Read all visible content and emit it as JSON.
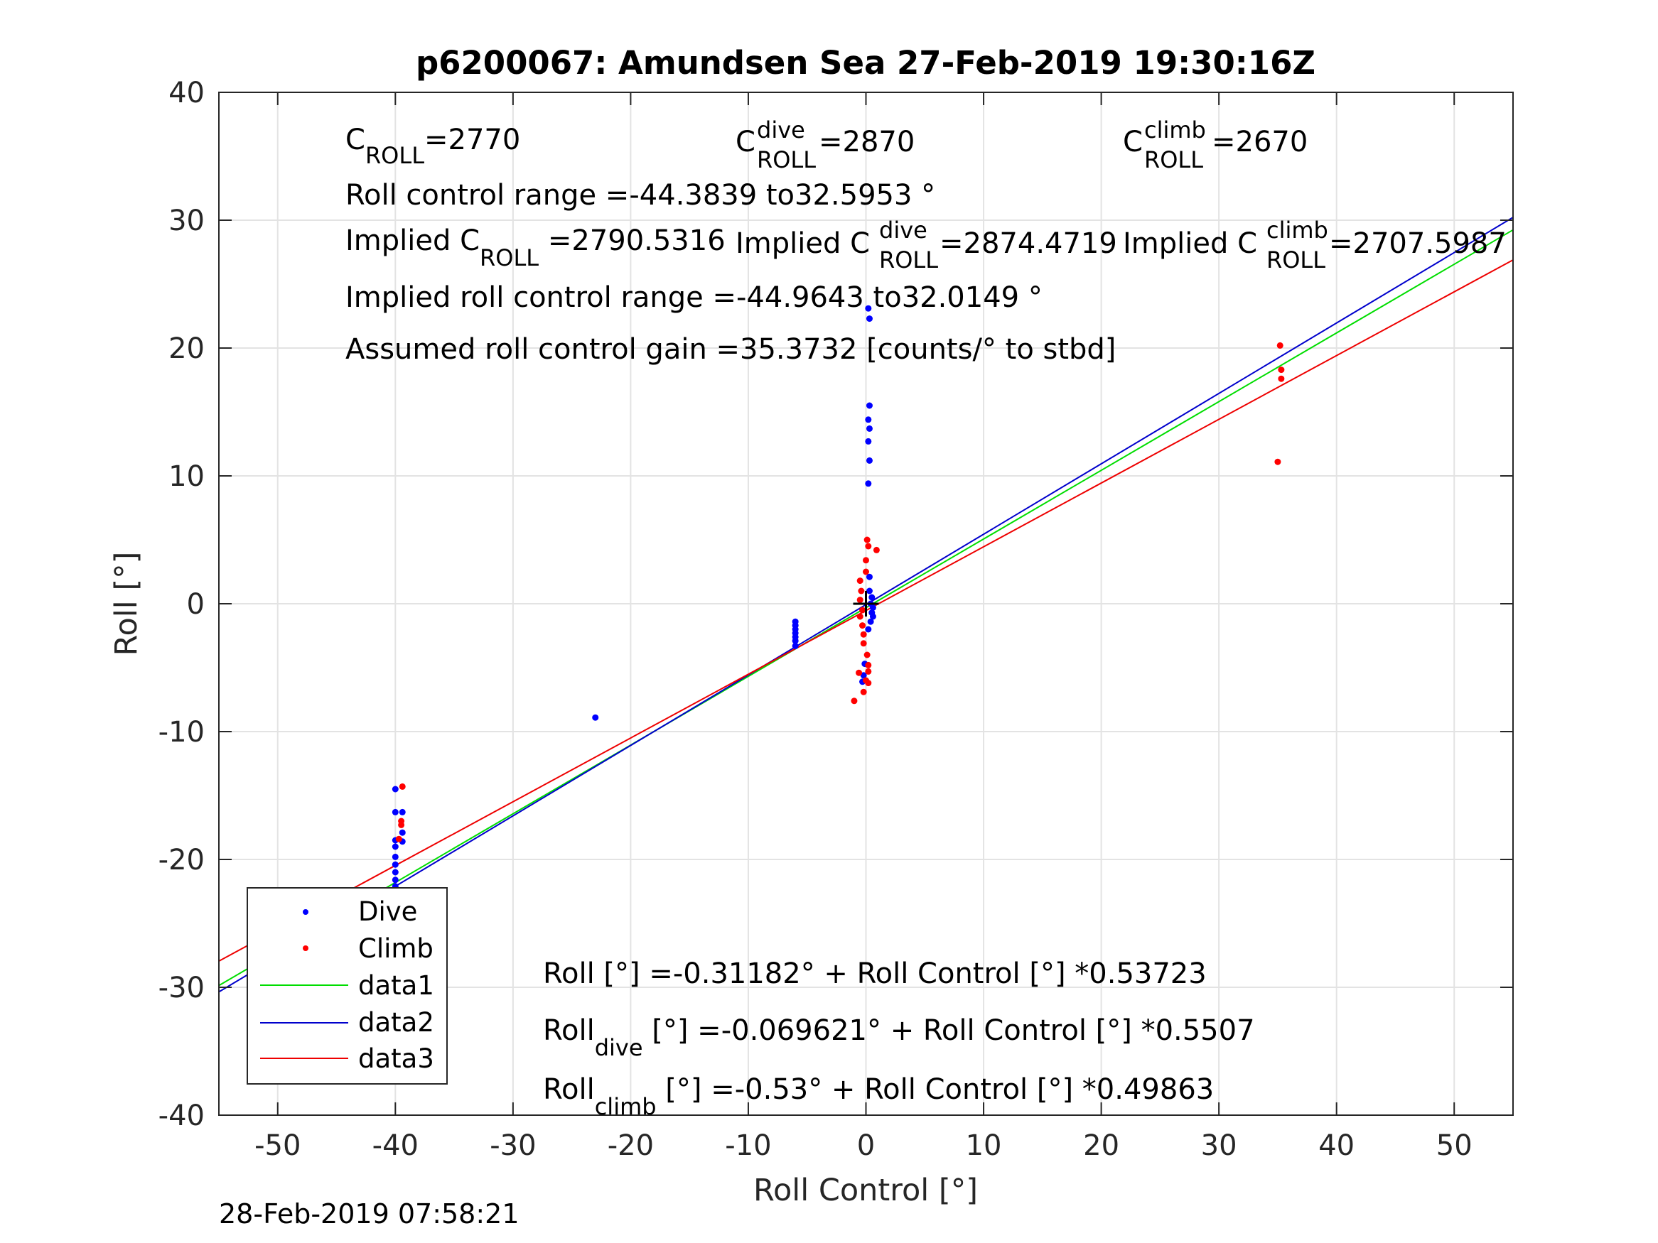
{
  "chart_data": {
    "type": "scatter",
    "title": "p6200067: Amundsen Sea 27-Feb-2019 19:30:16Z",
    "xlabel": "Roll Control [°]",
    "ylabel": "Roll [°]",
    "xlim": [
      -55,
      55
    ],
    "ylim": [
      -40,
      40
    ],
    "xticks": [
      "-50",
      "-40",
      "-30",
      "-20",
      "-10",
      "0",
      "10",
      "20",
      "30",
      "40",
      "50"
    ],
    "yticks": [
      "-40",
      "-30",
      "-20",
      "-10",
      "0",
      "10",
      "20",
      "30",
      "40"
    ],
    "xtick_values": [
      -50,
      -40,
      -30,
      -20,
      -10,
      0,
      10,
      20,
      30,
      40,
      50
    ],
    "ytick_values": [
      -40,
      -30,
      -20,
      -10,
      0,
      10,
      20,
      30,
      40
    ],
    "grid": true,
    "legend_position": "bottom-left",
    "timestamp": "28-Feb-2019 07:58:21",
    "colors": {
      "dive": "#0000ff",
      "climb": "#ff0000",
      "data1": "#00dd00",
      "data2": "#0000cc",
      "data3": "#ee0000"
    },
    "series": [
      {
        "name": "Dive",
        "kind": "points",
        "points": [
          [
            -47.7,
            -24.2
          ],
          [
            -40.0,
            -14.5
          ],
          [
            -40.0,
            -16.3
          ],
          [
            -40.0,
            -18.5
          ],
          [
            -40.0,
            -19.0
          ],
          [
            -40.0,
            -19.8
          ],
          [
            -40.0,
            -20.4
          ],
          [
            -40.0,
            -21.0
          ],
          [
            -40.0,
            -21.6
          ],
          [
            -40.0,
            -22.1
          ],
          [
            -40.0,
            -22.6
          ],
          [
            -40.0,
            -23.2
          ],
          [
            -40.0,
            -23.8
          ],
          [
            -40.0,
            -24.3
          ],
          [
            -40.0,
            -24.8
          ],
          [
            -40.0,
            -25.3
          ],
          [
            -40.0,
            -25.7
          ],
          [
            -39.4,
            -16.3
          ],
          [
            -39.4,
            -17.9
          ],
          [
            -39.4,
            -18.6
          ],
          [
            -23.0,
            -8.9
          ],
          [
            -6.0,
            -1.4
          ],
          [
            -6.0,
            -1.7
          ],
          [
            -6.0,
            -2.0
          ],
          [
            -6.0,
            -2.3
          ],
          [
            -6.0,
            -2.6
          ],
          [
            -6.0,
            -2.9
          ],
          [
            -6.0,
            -3.3
          ],
          [
            0.2,
            23.1
          ],
          [
            0.3,
            22.3
          ],
          [
            0.3,
            15.5
          ],
          [
            0.2,
            14.4
          ],
          [
            0.3,
            13.7
          ],
          [
            0.2,
            12.7
          ],
          [
            0.3,
            11.2
          ],
          [
            0.2,
            9.4
          ],
          [
            0.3,
            2.1
          ],
          [
            0.3,
            1.0
          ],
          [
            0.5,
            0.5
          ],
          [
            0.4,
            0.0
          ],
          [
            0.6,
            -0.3
          ],
          [
            0.5,
            -0.7
          ],
          [
            0.6,
            -1.0
          ],
          [
            0.4,
            -1.4
          ],
          [
            0.2,
            -2.0
          ],
          [
            -0.1,
            -4.7
          ],
          [
            -0.2,
            -5.6
          ],
          [
            -0.3,
            -6.1
          ]
        ]
      },
      {
        "name": "Climb",
        "kind": "points",
        "points": [
          [
            -47.7,
            -27.0
          ],
          [
            -39.4,
            -14.3
          ],
          [
            -39.5,
            -17.0
          ],
          [
            -39.5,
            -17.3
          ],
          [
            -39.7,
            -18.4
          ],
          [
            -40.0,
            -22.5
          ],
          [
            -40.0,
            -23.0
          ],
          [
            -40.0,
            -23.5
          ],
          [
            -40.0,
            -24.1
          ],
          [
            -39.6,
            -23.3
          ],
          [
            0.1,
            5.0
          ],
          [
            0.2,
            4.5
          ],
          [
            0.0,
            3.4
          ],
          [
            0.0,
            2.5
          ],
          [
            0.9,
            4.2
          ],
          [
            -0.5,
            1.8
          ],
          [
            -0.4,
            1.0
          ],
          [
            -0.5,
            0.3
          ],
          [
            -0.3,
            -0.5
          ],
          [
            -0.5,
            -1.0
          ],
          [
            -0.3,
            -1.7
          ],
          [
            -0.2,
            -2.4
          ],
          [
            -0.2,
            -3.1
          ],
          [
            0.1,
            -4.0
          ],
          [
            0.2,
            -4.8
          ],
          [
            0.2,
            -5.3
          ],
          [
            -0.6,
            -5.4
          ],
          [
            0.0,
            -6.0
          ],
          [
            0.2,
            -6.2
          ],
          [
            -0.2,
            -6.9
          ],
          [
            -1.0,
            -7.6
          ],
          [
            35.0,
            11.1
          ],
          [
            35.2,
            20.2
          ],
          [
            35.3,
            18.3
          ],
          [
            35.3,
            17.6
          ]
        ]
      },
      {
        "name": "data1",
        "kind": "line",
        "points": [
          [
            -55,
            -29.86
          ],
          [
            55,
            29.24
          ]
        ]
      },
      {
        "name": "data2",
        "kind": "line",
        "points": [
          [
            -55,
            -30.36
          ],
          [
            55,
            30.22
          ]
        ]
      },
      {
        "name": "data3",
        "kind": "line",
        "points": [
          [
            -55,
            -27.95
          ],
          [
            55,
            26.89
          ]
        ]
      }
    ],
    "origin_marker": [
      0,
      0
    ]
  },
  "annotations": {
    "c_roll": {
      "main": "C",
      "sub": "ROLL",
      "value": "=2770"
    },
    "c_dive": {
      "main": "C",
      "sup": "dive",
      "sub": "ROLL",
      "value": " =2870"
    },
    "c_climb": {
      "main": "C",
      "sup": "climb",
      "sub": "ROLL",
      "value": " =2670"
    },
    "roll_range": "Roll control range =-44.3839 to32.5953 °",
    "implied_c_roll": {
      "main": "Implied C",
      "sub": "ROLL",
      "value": " =2790.5316"
    },
    "implied_c_dive": {
      "main": "Implied C",
      "sup": "dive",
      "sub": "ROLL",
      "value": " =2874.4719"
    },
    "implied_c_climb": {
      "main": "Implied C",
      "sup": "climb",
      "sub": "ROLL",
      "value": " =2707.5987"
    },
    "implied_range": "Implied roll control range =-44.9643 to32.0149 °",
    "gain": "Assumed roll control gain =35.3732 [counts/° to stbd]",
    "fit_all": "Roll [°] =-0.31182° + Roll Control [°] *0.53723",
    "fit_dive": {
      "main": "Roll",
      "sub": "dive",
      "value": " [°] =-0.069621° + Roll Control [°] *0.5507"
    },
    "fit_climb": {
      "main": "Roll",
      "sub": "climb",
      "value": " [°] =-0.53° + Roll Control [°] *0.49863"
    }
  }
}
